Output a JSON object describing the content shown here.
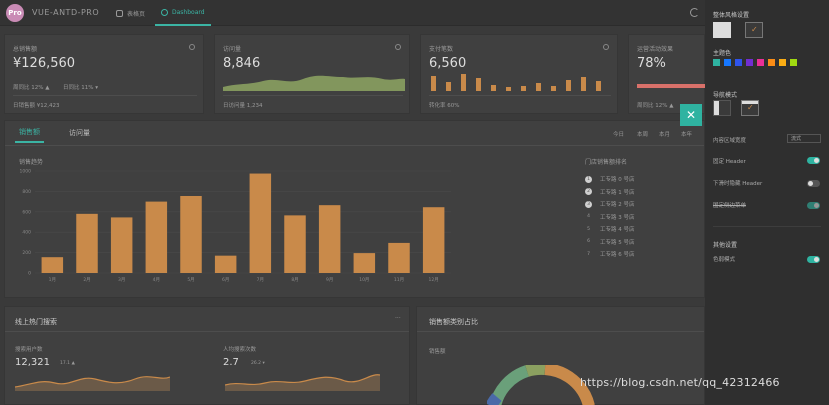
{
  "header": {
    "logo_text": "Pro",
    "brand": "VUE-ANTD-PRO",
    "tabs": [
      {
        "label": "表格页"
      },
      {
        "label": "Dashboard"
      }
    ]
  },
  "stats": [
    {
      "title": "总销售额",
      "value": "¥126,560",
      "week": "周同比 12% ▲",
      "day": "日同比 11% ▾",
      "footer": "日销售额 ¥12,423"
    },
    {
      "title": "访问量",
      "value": "8,846",
      "footer": "日访问量 1,234"
    },
    {
      "title": "支付笔数",
      "value": "6,560",
      "footer": "转化率 60%"
    },
    {
      "title": "运营活动效果",
      "value": "78%",
      "footer": "周同比 12% ▲"
    }
  ],
  "sales": {
    "tabs": [
      "销售额",
      "访问量"
    ],
    "ranges": [
      "今日",
      "本周",
      "本月",
      "本年"
    ],
    "chart_title": "销售趋势",
    "rank_title": "门店销售额排名",
    "rank_items": [
      "工专路 0 号店",
      "工专路 1 号店",
      "工专路 2 号店",
      "工专路 3 号店",
      "工专路 4 号店",
      "工专路 5 号店",
      "工专路 6 号店"
    ],
    "rank_nums": [
      "1",
      "2",
      "3",
      "4",
      "5",
      "6",
      "7"
    ]
  },
  "chart_data": {
    "type": "bar",
    "title": "销售趋势",
    "categories": [
      "1月",
      "2月",
      "3月",
      "4月",
      "5月",
      "6月",
      "7月",
      "8月",
      "9月",
      "10月",
      "11月",
      "12月"
    ],
    "values": [
      155,
      580,
      545,
      700,
      755,
      170,
      975,
      565,
      665,
      195,
      295,
      645
    ],
    "ylim": [
      0,
      1000
    ],
    "yticks": [
      "0",
      "200",
      "400",
      "600",
      "800",
      "1000"
    ],
    "xlabel": "",
    "ylabel": "",
    "color": "#c98a4a",
    "grid": true
  },
  "search_card": {
    "title": "线上热门搜索",
    "more": "···",
    "user_label": "搜索用户数",
    "user_value": "12,321",
    "user_change": "17.1 ▲",
    "avg_label": "人均搜索次数",
    "avg_value": "2.7",
    "avg_change": "26.2 ▾"
  },
  "category_card": {
    "title": "销售额类别占比",
    "subtitle": "销售额"
  },
  "drawer": {
    "style_title": "整体风格设置",
    "theme_title": "主题色",
    "theme_colors": [
      "#2fb3a1",
      "#1677ff",
      "#2f54eb",
      "#722ed1",
      "#eb2f96",
      "#fa8c16",
      "#faad14",
      "#a0d911"
    ],
    "nav_title": "导航模式",
    "content_width_label": "内容区域宽度",
    "content_width_value": "流式",
    "fixed_header": "固定 Header",
    "hide_header": "下滑时隐藏 Header",
    "fixed_sidebar": "固定侧边菜单",
    "other_title": "其他设置",
    "color_weak": "色弱模式",
    "close": "✕"
  },
  "watermark": "https://blog.csdn.net/qq_42312466"
}
